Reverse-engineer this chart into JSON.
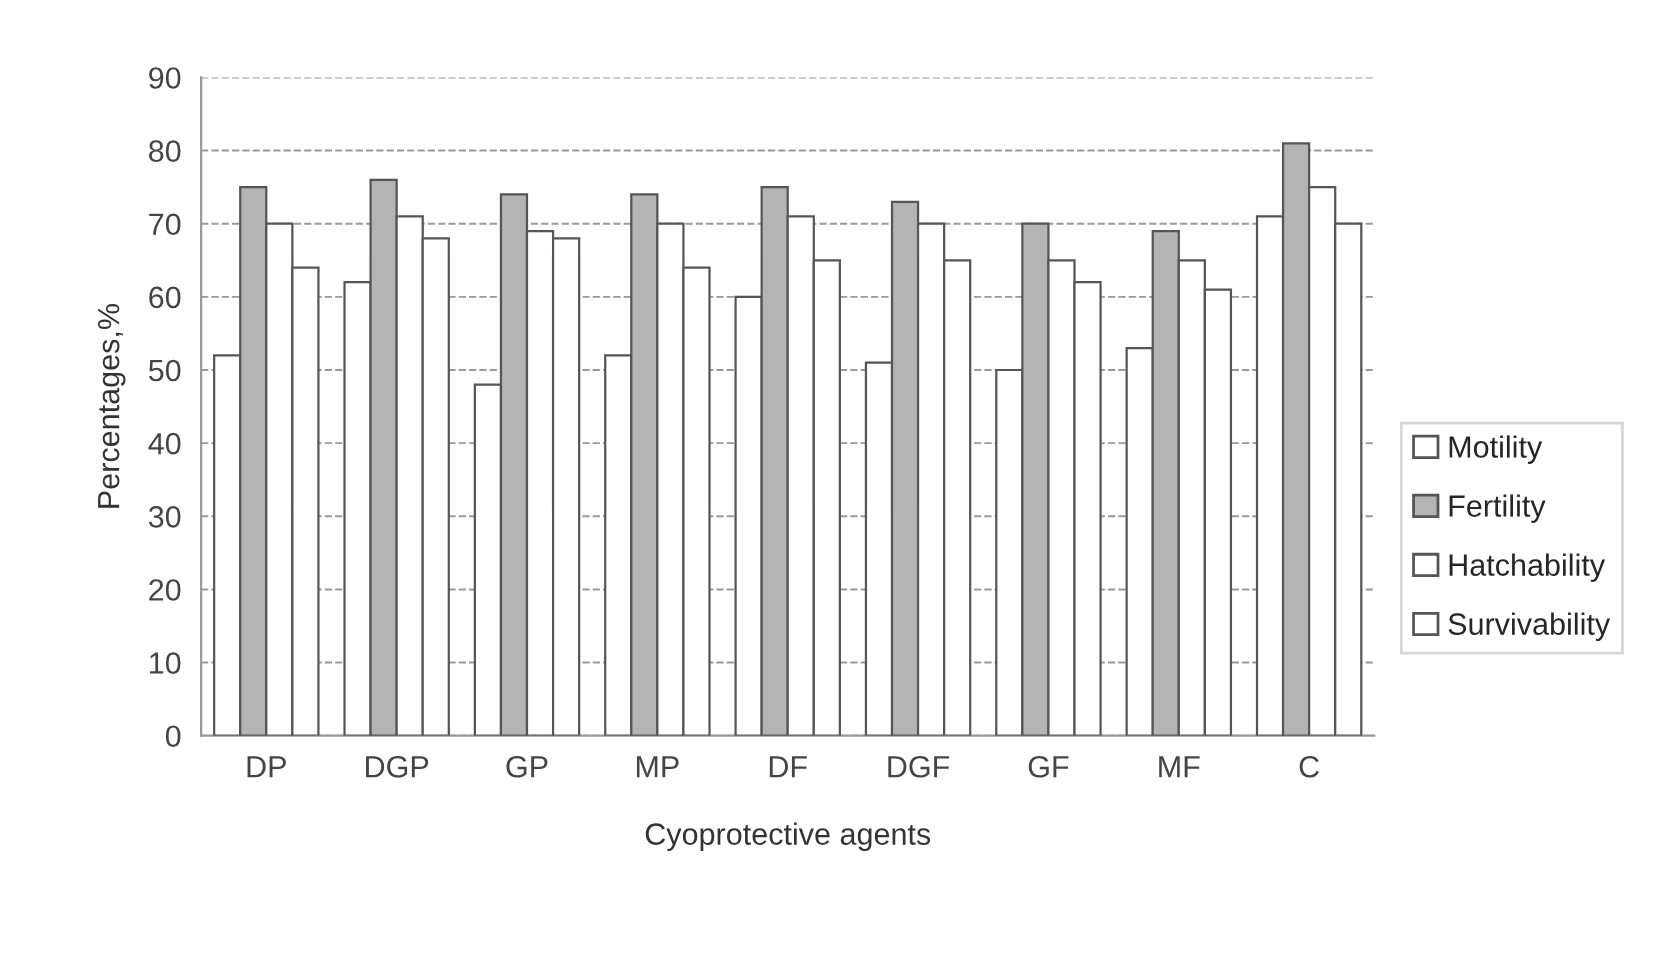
{
  "chart_data": {
    "type": "bar",
    "xlabel": "Cyoprotective agents",
    "ylabel": "Percentages,%",
    "categories": [
      "DP",
      "DGP",
      "GP",
      "MP",
      "DF",
      "DGF",
      "GF",
      "MF",
      "C"
    ],
    "series": [
      {
        "name": "Motility",
        "color": "#ffffff",
        "values": [
          52,
          62,
          48,
          52,
          60,
          51,
          50,
          53,
          71
        ]
      },
      {
        "name": "Fertility",
        "color": "#b4b4b4",
        "values": [
          75,
          76,
          74,
          74,
          75,
          73,
          70,
          69,
          81
        ]
      },
      {
        "name": "Hatchability",
        "color": "#ffffff",
        "values": [
          70,
          71,
          69,
          70,
          71,
          70,
          65,
          65,
          75
        ]
      },
      {
        "name": "Survivability",
        "color": "#ffffff",
        "values": [
          64,
          68,
          68,
          64,
          65,
          65,
          62,
          61,
          70
        ]
      }
    ],
    "ylim": [
      0,
      90
    ],
    "yticks": [
      0,
      10,
      20,
      30,
      40,
      50,
      60,
      70,
      80,
      90
    ],
    "grid": "y",
    "legend": "right"
  }
}
